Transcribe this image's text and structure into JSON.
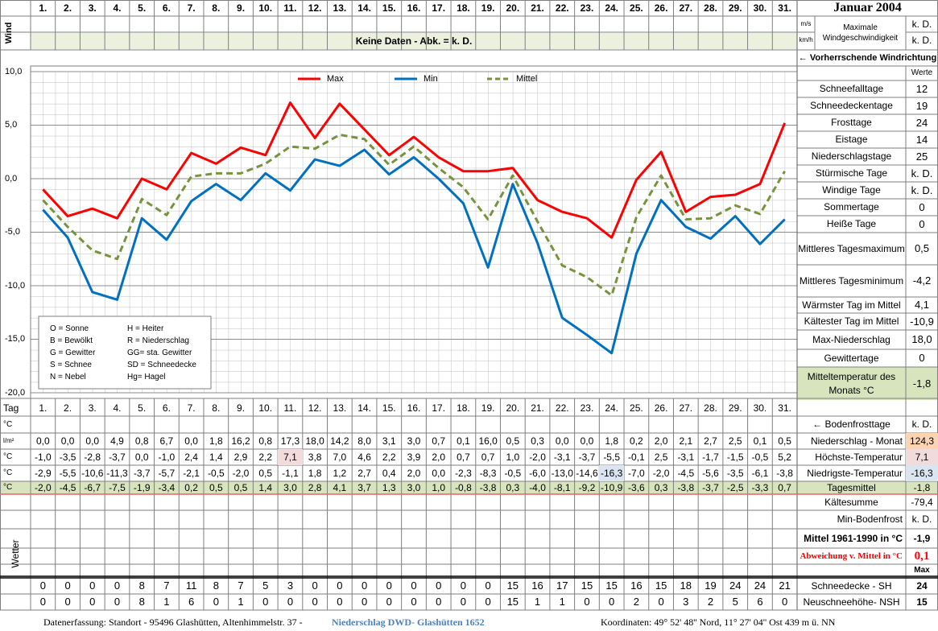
{
  "header": {
    "month": "Januar 2004"
  },
  "wind": {
    "axis_label": "Wind",
    "units": [
      "m/s",
      "km/h"
    ],
    "label": "Maximale Windgeschwindigkeit",
    "values": [
      "k. D.",
      "k. D."
    ],
    "no_data": "Keine Daten - Abk. = k. D.",
    "direction": "← Vorherrschende Windrichtung"
  },
  "chart_data": {
    "type": "line",
    "categories": [
      "1.",
      "2.",
      "3.",
      "4.",
      "5.",
      "6.",
      "7.",
      "8.",
      "9.",
      "10.",
      "11.",
      "12.",
      "13.",
      "14.",
      "15.",
      "16.",
      "17.",
      "18.",
      "19.",
      "20.",
      "21.",
      "22.",
      "23.",
      "24.",
      "25.",
      "26.",
      "27.",
      "28.",
      "29.",
      "30.",
      "31."
    ],
    "ylim": [
      -20,
      10
    ],
    "yticks": [
      {
        "value": 10,
        "label": "10,0"
      },
      {
        "value": 5,
        "label": "5,0"
      },
      {
        "value": 0,
        "label": "0,0"
      },
      {
        "value": -5,
        "label": "-5,0"
      },
      {
        "value": -10,
        "label": "-10,0"
      },
      {
        "value": -15,
        "label": "-15,0"
      },
      {
        "value": -20,
        "label": "-20,0"
      }
    ],
    "grid": true,
    "legend": "top",
    "series": [
      {
        "name": "Max",
        "color": "#ff0000",
        "unit": "°C",
        "row_label": "Höchste-Temperatur",
        "total": "7,1",
        "highlight": "#f2dcdb",
        "values": [
          -1.0,
          -3.5,
          -2.8,
          -3.7,
          0.0,
          -1.0,
          2.4,
          1.4,
          2.9,
          2.2,
          7.1,
          3.8,
          7.0,
          4.6,
          2.2,
          3.9,
          2.0,
          0.7,
          0.7,
          1.0,
          -2.0,
          -3.1,
          -3.7,
          -5.5,
          -0.1,
          2.5,
          -3.1,
          -1.7,
          -1.5,
          -0.5,
          5.2
        ],
        "value_labels": [
          "-1,0",
          "-3,5",
          "-2,8",
          "-3,7",
          "0,0",
          "-1,0",
          "2,4",
          "1,4",
          "2,9",
          "2,2",
          "7,1",
          "3,8",
          "7,0",
          "4,6",
          "2,2",
          "3,9",
          "2,0",
          "0,7",
          "0,7",
          "1,0",
          "-2,0",
          "-3,1",
          "-3,7",
          "-5,5",
          "-0,1",
          "2,5",
          "-3,1",
          "-1,7",
          "-1,5",
          "-0,5",
          "5,2"
        ]
      },
      {
        "name": "Min",
        "color": "#0070c0",
        "unit": "°C",
        "row_label": "Niedrigste-Temperatur",
        "total": "-16,3",
        "highlight": "#dbe5f1",
        "values": [
          -2.9,
          -5.5,
          -10.6,
          -11.3,
          -3.7,
          -5.7,
          -2.1,
          -0.5,
          -2.0,
          0.5,
          -1.1,
          1.8,
          1.2,
          2.7,
          0.4,
          2.0,
          0.0,
          -2.3,
          -8.3,
          -0.5,
          -6.0,
          -13.0,
          -14.6,
          -16.3,
          -7.0,
          -2.0,
          -4.5,
          -5.6,
          -3.5,
          -6.1,
          -3.8
        ],
        "value_labels": [
          "-2,9",
          "-5,5",
          "-10,6",
          "-11,3",
          "-3,7",
          "-5,7",
          "-2,1",
          "-0,5",
          "-2,0",
          "0,5",
          "-1,1",
          "1,8",
          "1,2",
          "2,7",
          "0,4",
          "2,0",
          "0,0",
          "-2,3",
          "-8,3",
          "-0,5",
          "-6,0",
          "-13,0",
          "-14,6",
          "-16,3",
          "-7,0",
          "-2,0",
          "-4,5",
          "-5,6",
          "-3,5",
          "-6,1",
          "-3,8"
        ]
      },
      {
        "name": "Mittel",
        "color": "#77933c",
        "dashed": true,
        "unit": "°C",
        "row_label": "Tagesmittel",
        "total": "-1,8",
        "row_color": "#d7e4bd",
        "values": [
          -2.0,
          -4.5,
          -6.7,
          -7.5,
          -1.9,
          -3.4,
          0.2,
          0.5,
          0.5,
          1.4,
          3.0,
          2.8,
          4.1,
          3.7,
          1.3,
          3.0,
          1.0,
          -0.8,
          -3.8,
          0.3,
          -4.0,
          -8.1,
          -9.2,
          -10.9,
          -3.6,
          0.3,
          -3.8,
          -3.7,
          -2.5,
          -3.3,
          0.7
        ],
        "value_labels": [
          "-2,0",
          "-4,5",
          "-6,7",
          "-7,5",
          "-1,9",
          "-3,4",
          "0,2",
          "0,5",
          "0,5",
          "1,4",
          "3,0",
          "2,8",
          "4,1",
          "3,7",
          "1,3",
          "3,0",
          "1,0",
          "-0,8",
          "-3,8",
          "0,3",
          "-4,0",
          "-8,1",
          "-9,2",
          "-10,9",
          "-3,6",
          "0,3",
          "-3,8",
          "-3,7",
          "-2,5",
          "-3,3",
          "0,7"
        ]
      }
    ]
  },
  "abbreviations": [
    [
      "O = Sonne",
      "H = Heiter"
    ],
    [
      "B = Bewölkt",
      "R = Niederschlag"
    ],
    [
      "G = Gewitter",
      "GG= sta. Gewitter"
    ],
    [
      "S = Schnee",
      "SD = Schneedecke"
    ],
    [
      "N = Nebel",
      "Hg= Hagel"
    ]
  ],
  "stats": {
    "header": "Werte",
    "rows": [
      {
        "label": "Schneefalltage",
        "value": "12"
      },
      {
        "label": "Schneedeckentage",
        "value": "19"
      },
      {
        "label": "Frosttage",
        "value": "24"
      },
      {
        "label": "Eistage",
        "value": "14"
      },
      {
        "label": "Niederschlagstage",
        "value": "25"
      },
      {
        "label": "Stürmische Tage",
        "value": "k. D."
      },
      {
        "label": "Windige Tage",
        "value": "k. D."
      },
      {
        "label": "Sommertage",
        "value": "0"
      },
      {
        "label": "Heiße Tage",
        "value": "0"
      },
      {
        "label": "Mittleres Tagesmaximum",
        "value": "0,5"
      },
      {
        "label": "Mittleres Tagesminimum",
        "value": "-4,2"
      },
      {
        "label": "Wärmster Tag im Mittel",
        "value": "4,1"
      },
      {
        "label": "Kältester Tag im Mittel",
        "value": "-10,9"
      },
      {
        "label": "Max-Niederschlag",
        "value": "18,0"
      },
      {
        "label": "Gewittertage",
        "value": "0"
      },
      {
        "label": "Mitteltemperatur des Monats °C",
        "value": "-1,8",
        "color": "#d7e4bd"
      }
    ]
  },
  "table": {
    "day_label": "Tag",
    "frost": {
      "unit": "°C",
      "label": "← Bodenfrosttage",
      "value": "k. D."
    },
    "precip": {
      "unit": "l/m²",
      "label": "Niederschlag - Monat",
      "value": "124,3",
      "highlight": "#fbd4b4",
      "cells": [
        "0,0",
        "0,0",
        "0,0",
        "4,9",
        "0,8",
        "6,7",
        "0,0",
        "1,8",
        "16,2",
        "0,8",
        "17,3",
        "18,0",
        "14,2",
        "8,0",
        "3,1",
        "3,0",
        "0,7",
        "0,1",
        "16,0",
        "0,5",
        "0,3",
        "0,0",
        "0,0",
        "1,8",
        "0,2",
        "2,0",
        "2,1",
        "2,7",
        "2,5",
        "0,1",
        "0,5"
      ]
    },
    "summary": [
      {
        "label": "Kältesumme",
        "value": "-79,4"
      },
      {
        "label": "Min-Bodenfrost",
        "value": "k. D."
      },
      {
        "label": "Mittel 1961-1990 in °C",
        "value": "-1,9"
      },
      {
        "label": "Abweichung v. Mittel in °C",
        "value": "0,1",
        "color": "#ff0000"
      }
    ],
    "max_label": "Max",
    "weather_label": "Wetter",
    "snow": [
      {
        "label": "Schneedecke - SH",
        "value": 24,
        "cells": [
          0,
          0,
          0,
          0,
          8,
          7,
          11,
          8,
          7,
          5,
          3,
          0,
          0,
          0,
          0,
          0,
          0,
          0,
          0,
          15,
          16,
          17,
          15,
          15,
          16,
          15,
          18,
          19,
          24,
          24,
          21
        ]
      },
      {
        "label": "Neuschneehöhe- NSH",
        "value": 15,
        "cells": [
          0,
          0,
          0,
          0,
          8,
          1,
          6,
          0,
          1,
          0,
          0,
          0,
          0,
          0,
          0,
          0,
          0,
          0,
          0,
          15,
          1,
          1,
          0,
          0,
          2,
          0,
          3,
          2,
          5,
          6,
          0
        ]
      }
    ]
  },
  "footer": {
    "left": "Datenerfassung:  Standort -  95496  Glashütten, Altenhimmelstr. 37 -",
    "link": "Niederschlag DWD- Glashütten 1652",
    "right": "Koordinaten:  49° 52' 48'' Nord,   11° 27' 04'' Ost   439 m ü. NN"
  }
}
